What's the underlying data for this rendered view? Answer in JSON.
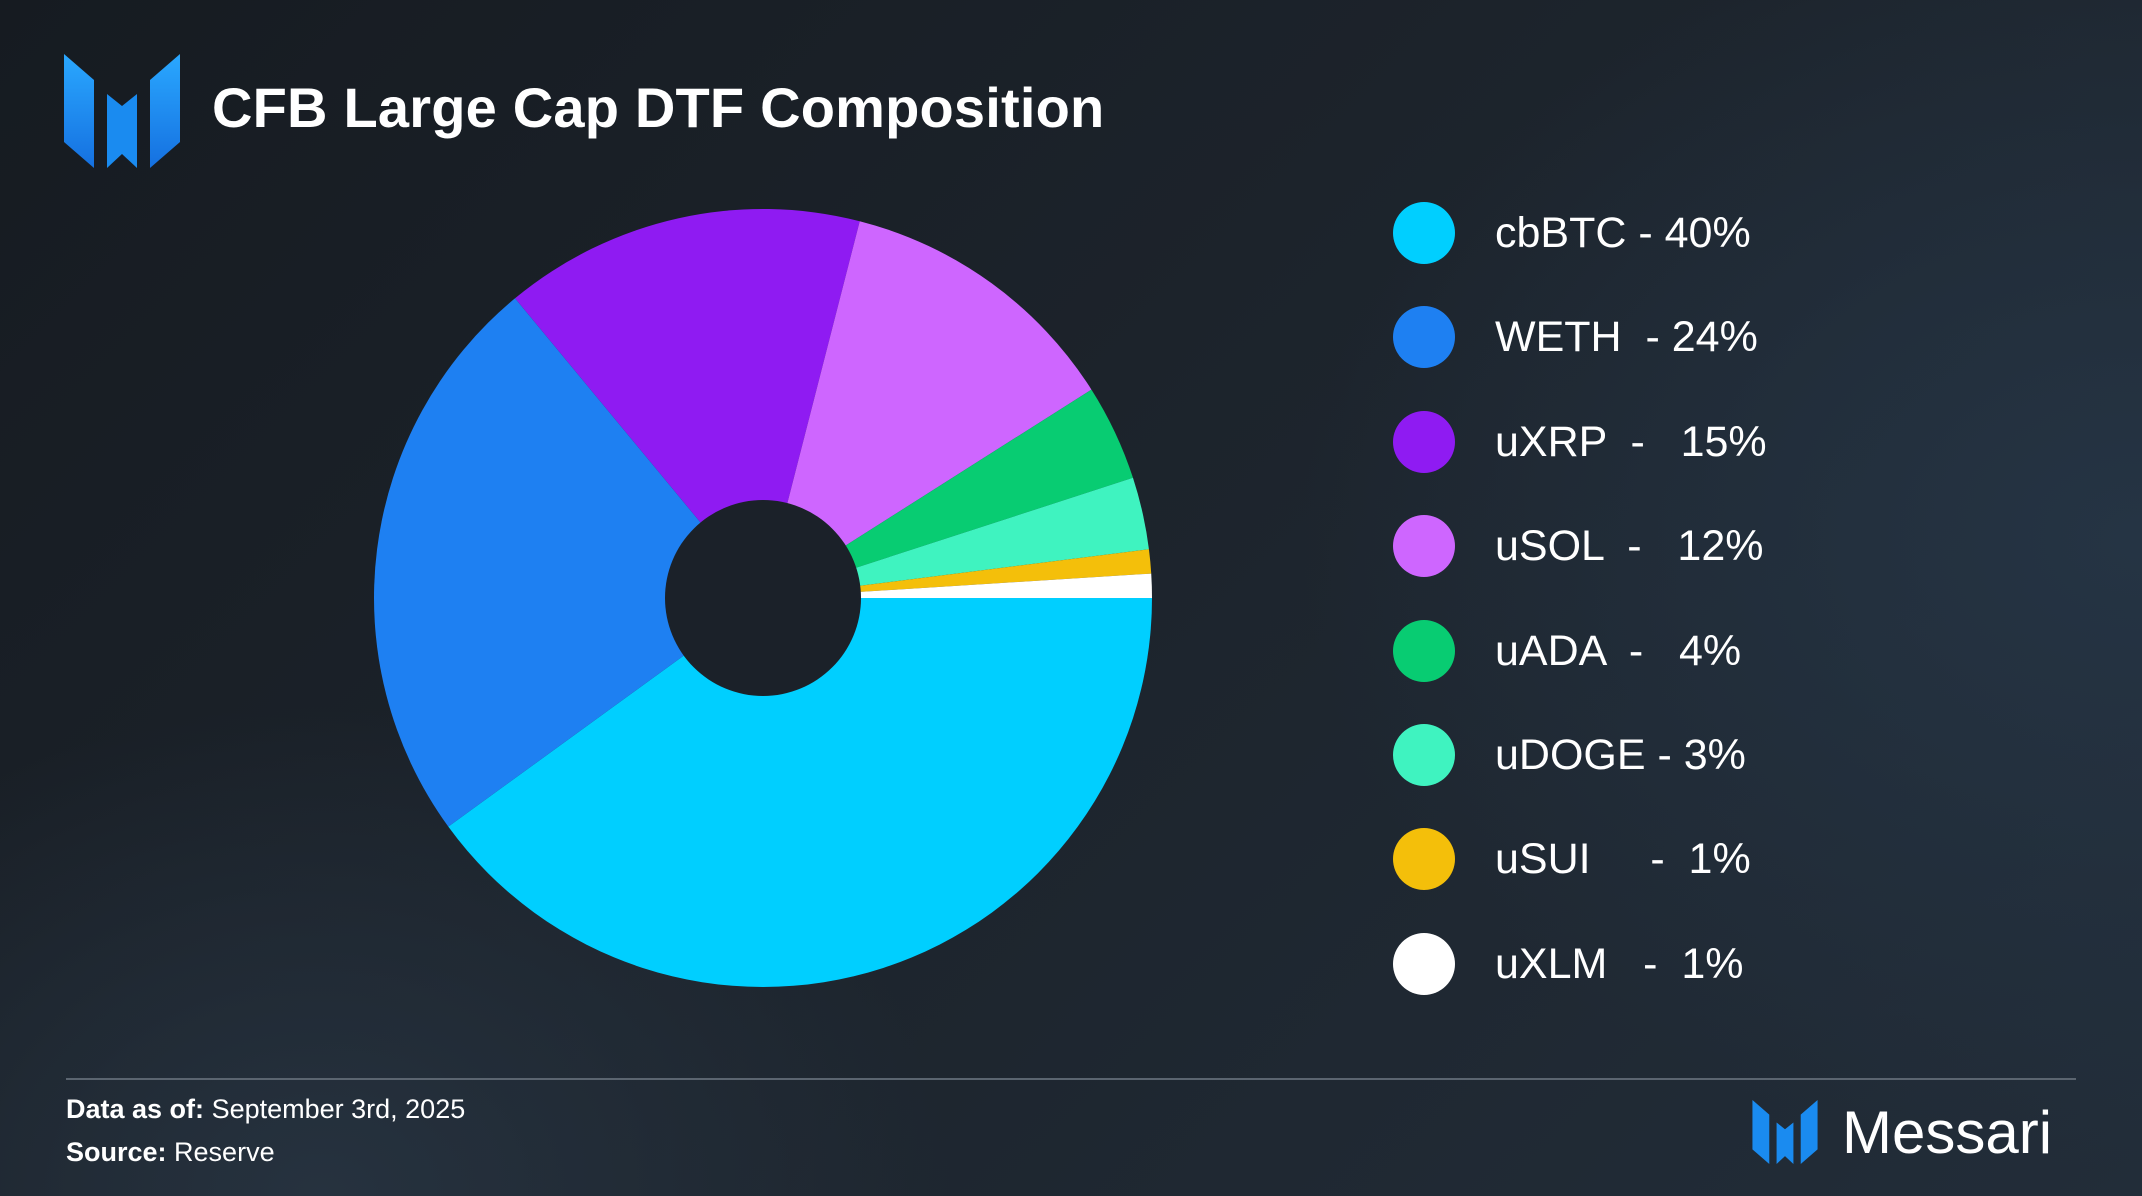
{
  "header": {
    "title": "CFB Large Cap DTF Composition",
    "logo_icon": "messari-m-logo-icon"
  },
  "chart_data": {
    "type": "pie",
    "title": "CFB Large Cap DTF Composition",
    "donut": true,
    "slices": [
      {
        "label": "cbBTC",
        "legend_text": "cbBTC - 40%",
        "value": 40,
        "color": "#00CFFF"
      },
      {
        "label": "WETH",
        "legend_text": "WETH  - 24%",
        "value": 24,
        "color": "#1E80F2"
      },
      {
        "label": "uXRP",
        "legend_text": "uXRP  -   15%",
        "value": 15,
        "color": "#8F1BF2"
      },
      {
        "label": "uSOL",
        "legend_text": "uSOL  -   12%",
        "value": 12,
        "color": "#CE66FF"
      },
      {
        "label": "uADA",
        "legend_text": "uADA  -   4%",
        "value": 4,
        "color": "#08CC72"
      },
      {
        "label": "uDOGE",
        "legend_text": "uDOGE - 3%",
        "value": 3,
        "color": "#3FF3C0"
      },
      {
        "label": "uSUI",
        "legend_text": "uSUI     -  1%",
        "value": 1,
        "color": "#F4BF0A"
      },
      {
        "label": "uXLM",
        "legend_text": "uXLM   -  1%",
        "value": 1,
        "color": "#FFFFFF"
      }
    ],
    "legend_position": "right"
  },
  "footer": {
    "date_label": "Data as of:",
    "date_value": "September 3rd, 2025",
    "source_label": "Source:",
    "source_value": "Reserve",
    "brand_name": "Messari"
  },
  "colors": {
    "brand_blue": "#1A8BF0",
    "donut_hole": "#1B2129"
  }
}
